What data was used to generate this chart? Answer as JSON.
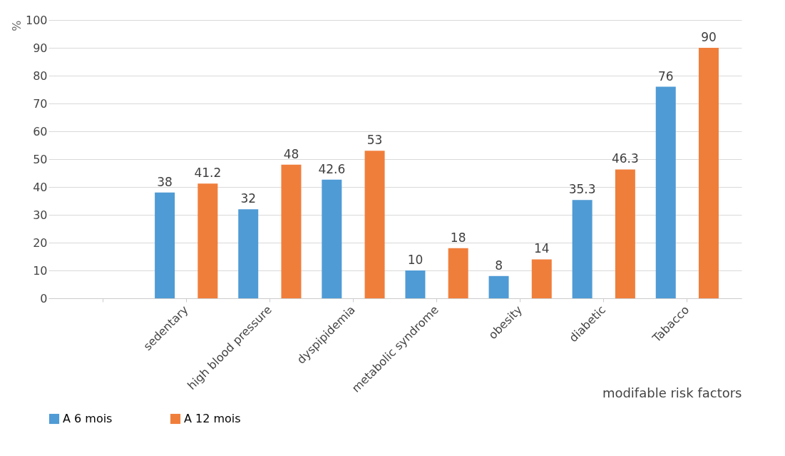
{
  "chart_data": {
    "type": "bar",
    "xlabel": "modifable risk factors",
    "ylabel": "%",
    "categories": [
      null,
      "sedentary",
      "high blood pressure",
      "dyspipidemia",
      "metabolic syndrome",
      "obesity",
      "diabetic",
      "Tabacco"
    ],
    "series": [
      {
        "name": "A 6 mois",
        "color": "#4f9bd5",
        "values": [
          null,
          38,
          32,
          42.6,
          10,
          8,
          35.3,
          76
        ]
      },
      {
        "name": "A 12 mois",
        "color": "#f07e3b",
        "values": [
          null,
          41.2,
          48,
          53,
          18,
          14,
          46.3,
          90
        ]
      }
    ],
    "ylim": [
      0,
      100
    ],
    "yticks": [
      0,
      10,
      20,
      30,
      40,
      50,
      60,
      70,
      80,
      90,
      100
    ],
    "grid": "y",
    "legend": "bottom",
    "data_labels": true
  }
}
